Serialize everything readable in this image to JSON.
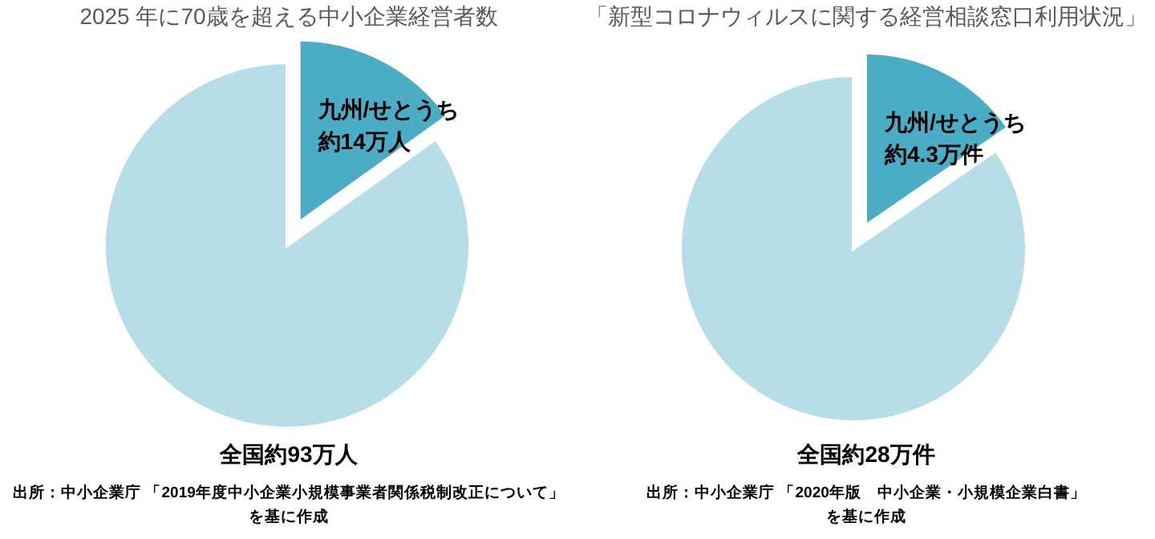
{
  "chart_data": [
    {
      "type": "pie",
      "title": "2025 年に70歳を超える中小企業経営者数",
      "categories": [
        "九州/せとうち",
        null
      ],
      "values": [
        15.1,
        84.9
      ],
      "value_labels": [
        "約14万人",
        null
      ],
      "colors": [
        "#4bacc6",
        "#b7dde8"
      ],
      "annotations": [
        "全国約93万人",
        "出所：中小企業庁 「2019年度中小企業小規模事業者関係税制改正について」",
        "を基に作成"
      ]
    },
    {
      "type": "pie",
      "title": "「新型コロナウィルスに関する経営相談窓口利用状況」",
      "categories": [
        "九州/せとうち",
        null
      ],
      "values": [
        15.4,
        84.6
      ],
      "value_labels": [
        "約4.3万件",
        null
      ],
      "colors": [
        "#4bacc6",
        "#b7dde8"
      ],
      "annotations": [
        "全国約28万件",
        "出所：中小企業庁 「2020年版　中小企業・小規模企業白書」",
        "を基に作成"
      ]
    }
  ]
}
